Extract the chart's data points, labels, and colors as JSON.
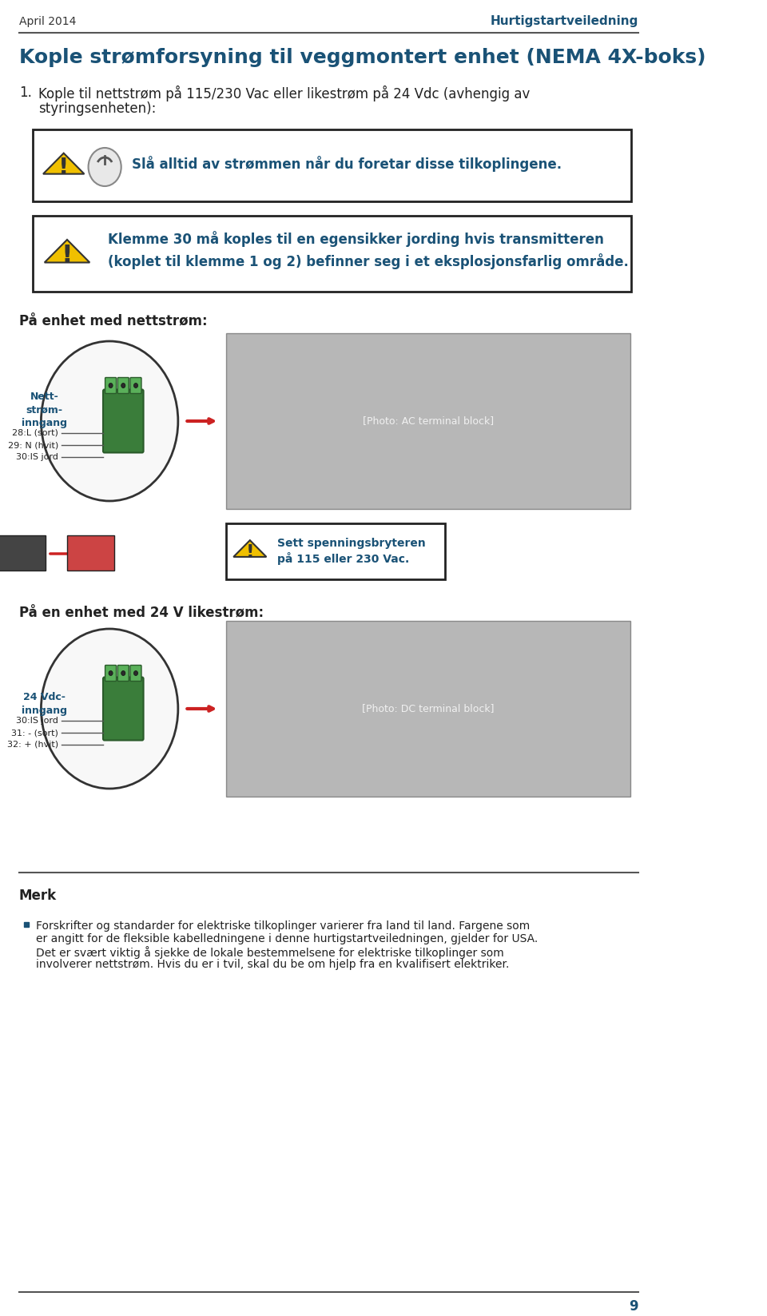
{
  "page_width": 9.6,
  "page_height": 16.47,
  "bg_color": "#ffffff",
  "header_date": "April 2014",
  "header_title": "Hurtigstartveiledning",
  "header_color": "#1a5276",
  "header_date_color": "#333333",
  "divider_color": "#555555",
  "page_number": "9",
  "main_title": "Kople strømforsyning til veggmontert enhet (NEMA 4X-boks)",
  "main_title_color": "#1a5276",
  "step1_text": "1. Kople til nettstrøm på 115/230 Vac eller likestrøm på 24 Vdc (avhengig av\n      styringsenheten):",
  "step1_color": "#222222",
  "warning1_text": "Slå alltid av strømmen når du foretar disse tilkoplingene.",
  "warning1_color": "#1a5276",
  "warning2_line1": "Klemme 30 må koples til en egensikker jording hvis transmitteren",
  "warning2_line2": "(koplet til klemme 1 og 2) befinner seg i et eksplosjonsfarlig område.",
  "warning2_color": "#1a5276",
  "box_border_color": "#222222",
  "warning_triangle_color": "#f0c000",
  "warning_triangle_border": "#333333",
  "section1_title": "På enhet med nettstrøm:",
  "section1_color": "#222222",
  "nett_label": "Nett-\nstrøm-\ninngang",
  "nett_label_color": "#1a5276",
  "nett_lines": [
    "28:L (sort)",
    "29: N (hvit)",
    "30:IS jord"
  ],
  "nett_lines_color": "#222222",
  "warning3_text": "Sett spenningsbryteren\npå 115 eller 230 Vac.",
  "warning3_color": "#1a5276",
  "section2_title": "På en enhet med 24 V likestrøm:",
  "section2_color": "#222222",
  "vdc_label": "24 Vdc-\ninngang",
  "vdc_label_color": "#1a5276",
  "vdc_lines": [
    "30:IS jord",
    "31: - (sort)",
    "32: + (hvit)"
  ],
  "vdc_lines_color": "#222222",
  "merk_title": "Merk",
  "merk_title_color": "#222222",
  "merk_bullet_color": "#1a5276",
  "merk_text1": "Forskrifter og standarder for elektriske tilkoplinger varierer fra land til land. Fargene som",
  "merk_text2": "er angitt for de fleksible kabelledningene i denne hurtigstartveiledningen, gjelder for USA.",
  "merk_text3": "Det er svært viktig å sjekke de lokale bestemmelsene for elektriske tilkoplinger som",
  "merk_text4": "involverer nettstrøm. Hvis du er i tvil, skal du be om hjelp fra en kvalifisert elektriker.",
  "merk_color": "#222222",
  "bottom_divider_color": "#555555",
  "circle_color": "#ffffff",
  "circle_border": "#333333",
  "arrow_color": "#cc2222"
}
